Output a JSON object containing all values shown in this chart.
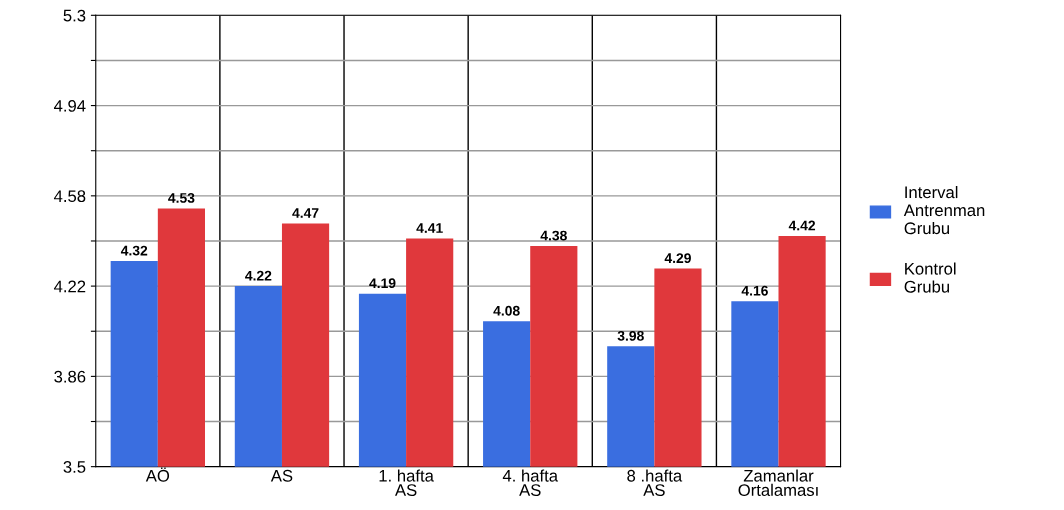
{
  "chart_data": {
    "type": "bar",
    "categories": [
      "AÖ",
      "AS",
      "1. hafta\nAS",
      "4. hafta\nAS",
      "8 .hafta\nAS",
      "Zamanlar\nOrtalaması"
    ],
    "series": [
      {
        "name": "Interval\nAntrenman\nGrubu",
        "color": "#3a6ee0",
        "values": [
          4.32,
          4.22,
          4.19,
          4.08,
          3.98,
          4.16
        ]
      },
      {
        "name": "Kontrol\nGrubu",
        "color": "#e0383c",
        "values": [
          4.53,
          4.47,
          4.41,
          4.38,
          4.29,
          4.42
        ]
      }
    ],
    "ylim": [
      3.5,
      5.3
    ],
    "yticks": [
      3.5,
      {
        "value": 3.68,
        "label": null
      },
      3.86,
      {
        "value": 4.04,
        "label": null
      },
      4.22,
      {
        "value": 4.4,
        "label": null
      },
      4.58,
      {
        "value": 4.76,
        "label": null
      },
      4.94,
      {
        "value": 5.12,
        "label": null
      },
      5.3
    ],
    "grid": "y",
    "data_labels": true,
    "legend": "right"
  }
}
